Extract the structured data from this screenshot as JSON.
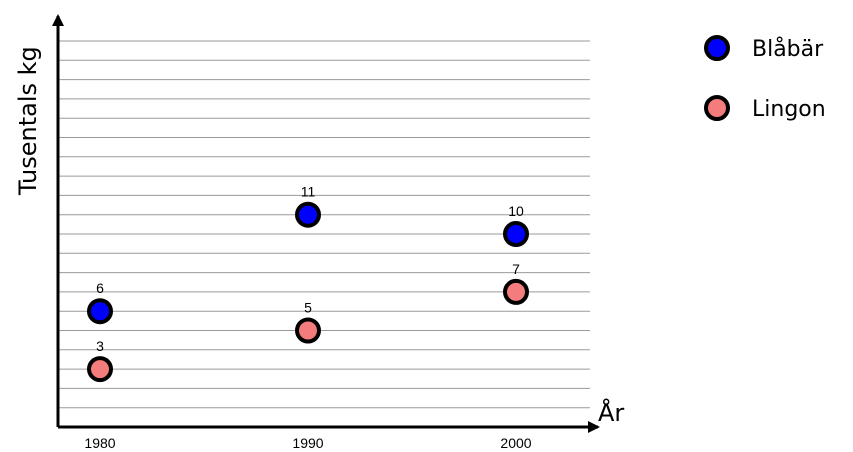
{
  "chart_data": {
    "type": "scatter",
    "xlabel": "År",
    "ylabel": "Tusentals kg",
    "x_ticks": [
      "1980",
      "1990",
      "2000"
    ],
    "xlim": [
      1980,
      2000
    ],
    "ylim": [
      0,
      20
    ],
    "grid": true,
    "legend_position": "top-right",
    "series": [
      {
        "name": "Blåbär",
        "color": "#0000ff",
        "points": [
          {
            "x": 1980,
            "y": 6,
            "label": "6"
          },
          {
            "x": 1990,
            "y": 11,
            "label": "11"
          },
          {
            "x": 2000,
            "y": 10,
            "label": "10"
          }
        ]
      },
      {
        "name": "Lingon",
        "color": "#f47c7c",
        "points": [
          {
            "x": 1980,
            "y": 3,
            "label": "3"
          },
          {
            "x": 1990,
            "y": 5,
            "label": "5"
          },
          {
            "x": 2000,
            "y": 7,
            "label": "7"
          }
        ]
      }
    ]
  }
}
